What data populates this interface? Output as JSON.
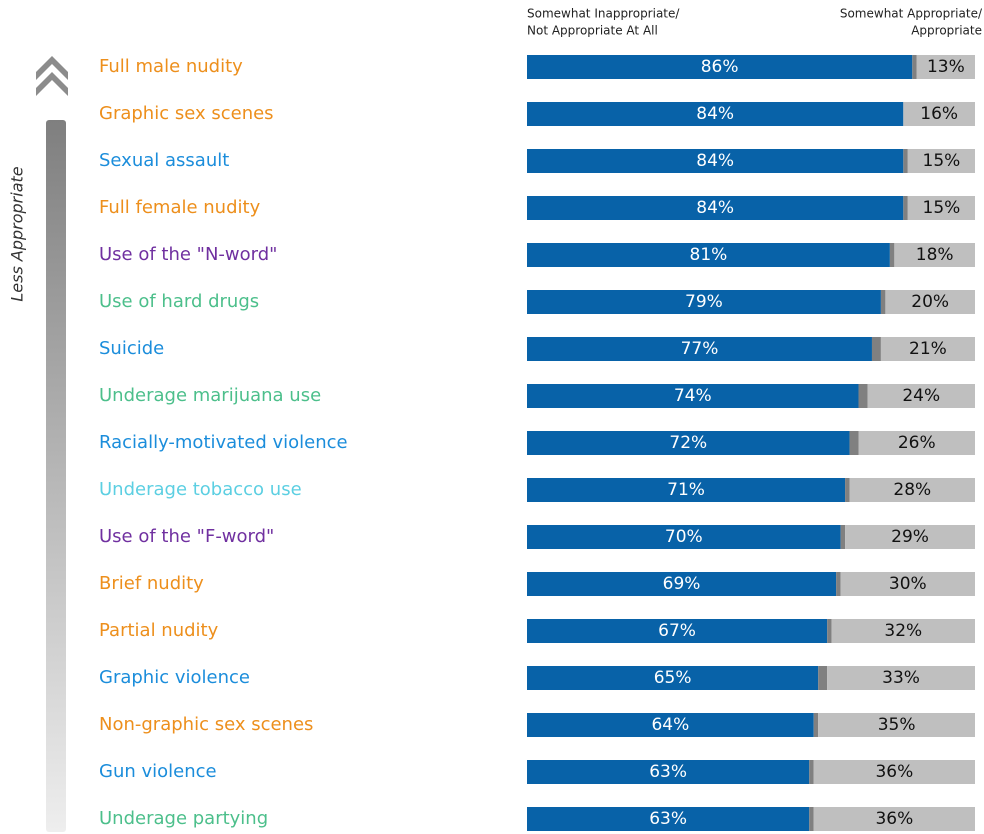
{
  "chart_data": {
    "type": "stacked-bar-horizontal",
    "axis_label": "Less Appropriate",
    "categories": [
      "Full male nudity",
      "Graphic sex scenes",
      "Sexual assault",
      "Full female nudity",
      "Use of the \"N-word\"",
      "Use of hard drugs",
      "Suicide",
      "Underage marijuana use",
      "Racially-motivated violence",
      "Underage tobacco use",
      "Use of the \"F-word\"",
      "Brief nudity",
      "Partial nudity",
      "Graphic violence",
      "Non-graphic sex scenes",
      "Gun violence",
      "Underage partying"
    ],
    "category_colors": [
      "#ed8f1c",
      "#ed8f1c",
      "#1b8ddb",
      "#ed8f1c",
      "#7030a0",
      "#4cbf8b",
      "#1b8ddb",
      "#4cbf8b",
      "#1b8ddb",
      "#5ccfe2",
      "#7030a0",
      "#ed8f1c",
      "#ed8f1c",
      "#1b8ddb",
      "#ed8f1c",
      "#1b8ddb",
      "#4cbf8b"
    ],
    "xlim": [
      0,
      100
    ],
    "series": [
      {
        "name": [
          "Somewhat Inappropriate/",
          "Not Appropriate At All"
        ],
        "color": "#0862a8",
        "values": [
          86,
          84,
          84,
          84,
          81,
          79,
          77,
          74,
          72,
          71,
          70,
          69,
          67,
          65,
          64,
          63,
          63
        ],
        "value_labels": [
          "86%",
          "84%",
          "84%",
          "84%",
          "81%",
          "79%",
          "77%",
          "74%",
          "72%",
          "71%",
          "70%",
          "69%",
          "67%",
          "65%",
          "64%",
          "63%",
          "63%"
        ]
      },
      {
        "color": "#808080",
        "values": [
          1,
          0,
          1,
          1,
          1,
          1,
          2,
          2,
          2,
          1,
          1,
          1,
          1,
          2,
          1,
          1,
          1
        ]
      },
      {
        "name": [
          "Somewhat Appropriate/",
          "Appropriate"
        ],
        "color": "#bfbfbf",
        "values": [
          13,
          16,
          15,
          15,
          18,
          20,
          21,
          24,
          26,
          28,
          29,
          30,
          32,
          33,
          35,
          36,
          36
        ],
        "value_labels": [
          "13%",
          "16%",
          "15%",
          "15%",
          "18%",
          "20%",
          "21%",
          "24%",
          "26%",
          "28%",
          "29%",
          "30%",
          "32%",
          "33%",
          "35%",
          "36%",
          "36%"
        ]
      }
    ]
  }
}
